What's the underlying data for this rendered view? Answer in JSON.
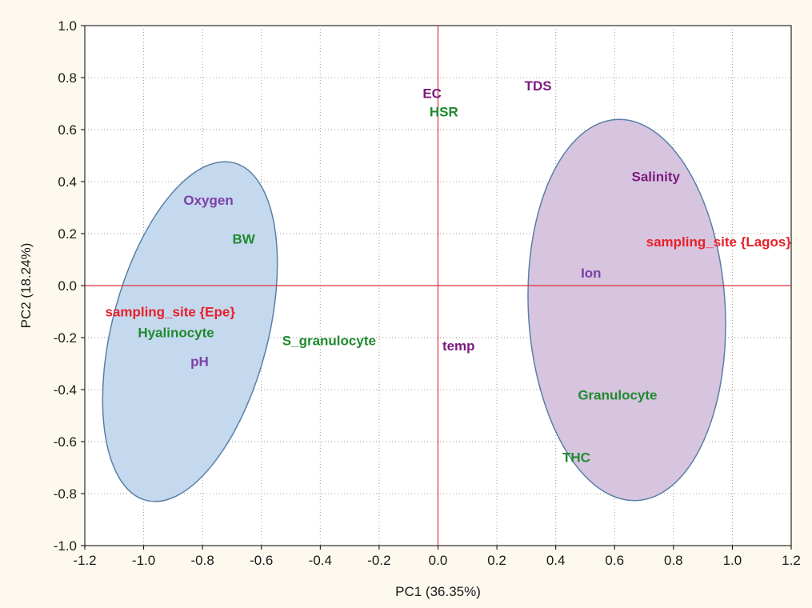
{
  "chart_data": {
    "type": "scatter",
    "title": "",
    "xlabel": "PC1 (36.35%)",
    "ylabel": "PC2 (18.24%)",
    "xlim": [
      -1.2,
      1.2
    ],
    "ylim": [
      -1.0,
      1.0
    ],
    "x_ticks": [
      -1.2,
      -1.0,
      -0.8,
      -0.6,
      -0.4,
      -0.2,
      0.0,
      0.2,
      0.4,
      0.6,
      0.8,
      1.0,
      1.2
    ],
    "x_tick_labels": [
      "-1.2",
      "-1.0",
      "-0.8",
      "-0.6",
      "-0.4",
      "-0.2",
      "0.0",
      "0.2",
      "0.4",
      "0.6",
      "0.8",
      "1.0",
      "1.2"
    ],
    "y_ticks": [
      -1.0,
      -0.8,
      -0.6,
      -0.4,
      -0.2,
      0.0,
      0.2,
      0.4,
      0.6,
      0.8,
      1.0
    ],
    "y_tick_labels": [
      "-1.0",
      "-0.8",
      "-0.6",
      "-0.4",
      "-0.2",
      "0.0",
      "0.2",
      "0.4",
      "0.6",
      "0.8",
      "1.0"
    ],
    "grid": true,
    "reference_lines": {
      "x": 0.0,
      "y": 0.0,
      "color": "#e0303a"
    },
    "points": [
      {
        "label": "EC",
        "x": -0.02,
        "y": 0.74,
        "color": "#7b1a7e"
      },
      {
        "label": "TDS",
        "x": 0.34,
        "y": 0.77,
        "color": "#7b1a7e"
      },
      {
        "label": "HSR",
        "x": 0.02,
        "y": 0.67,
        "color": "#1f8a2e"
      },
      {
        "label": "Oxygen",
        "x": -0.78,
        "y": 0.33,
        "color": "#7b3fa6"
      },
      {
        "label": "Salinity",
        "x": 0.74,
        "y": 0.42,
        "color": "#7b1a7e"
      },
      {
        "label": "BW",
        "x": -0.66,
        "y": 0.18,
        "color": "#1f8a2e"
      },
      {
        "label": "sampling_site {Lagos}",
        "x": 0.96,
        "y": 0.17,
        "color": "#e8202a"
      },
      {
        "label": "Ion",
        "x": 0.52,
        "y": 0.05,
        "color": "#7b3fa6"
      },
      {
        "label": "sampling_site {Epe}",
        "x": -0.91,
        "y": -0.1,
        "color": "#e8202a"
      },
      {
        "label": "Hyalinocyte",
        "x": -0.89,
        "y": -0.18,
        "color": "#1f8a2e"
      },
      {
        "label": "S_granulocyte",
        "x": -0.37,
        "y": -0.21,
        "color": "#1f8a2e"
      },
      {
        "label": "temp",
        "x": 0.07,
        "y": -0.23,
        "color": "#7b1a7e"
      },
      {
        "label": "pH",
        "x": -0.81,
        "y": -0.29,
        "color": "#7b3fa6"
      },
      {
        "label": "Granulocyte",
        "x": 0.61,
        "y": -0.42,
        "color": "#1f8a2e"
      },
      {
        "label": "THC",
        "x": 0.47,
        "y": -0.66,
        "color": "#1f8a2e"
      }
    ],
    "clusters": [
      {
        "label": "",
        "fill": "#c5d9ee",
        "stroke": "#5a7fa8"
      },
      {
        "label": "",
        "fill": "#d7c4df",
        "stroke": "#5a7fa8"
      }
    ]
  }
}
